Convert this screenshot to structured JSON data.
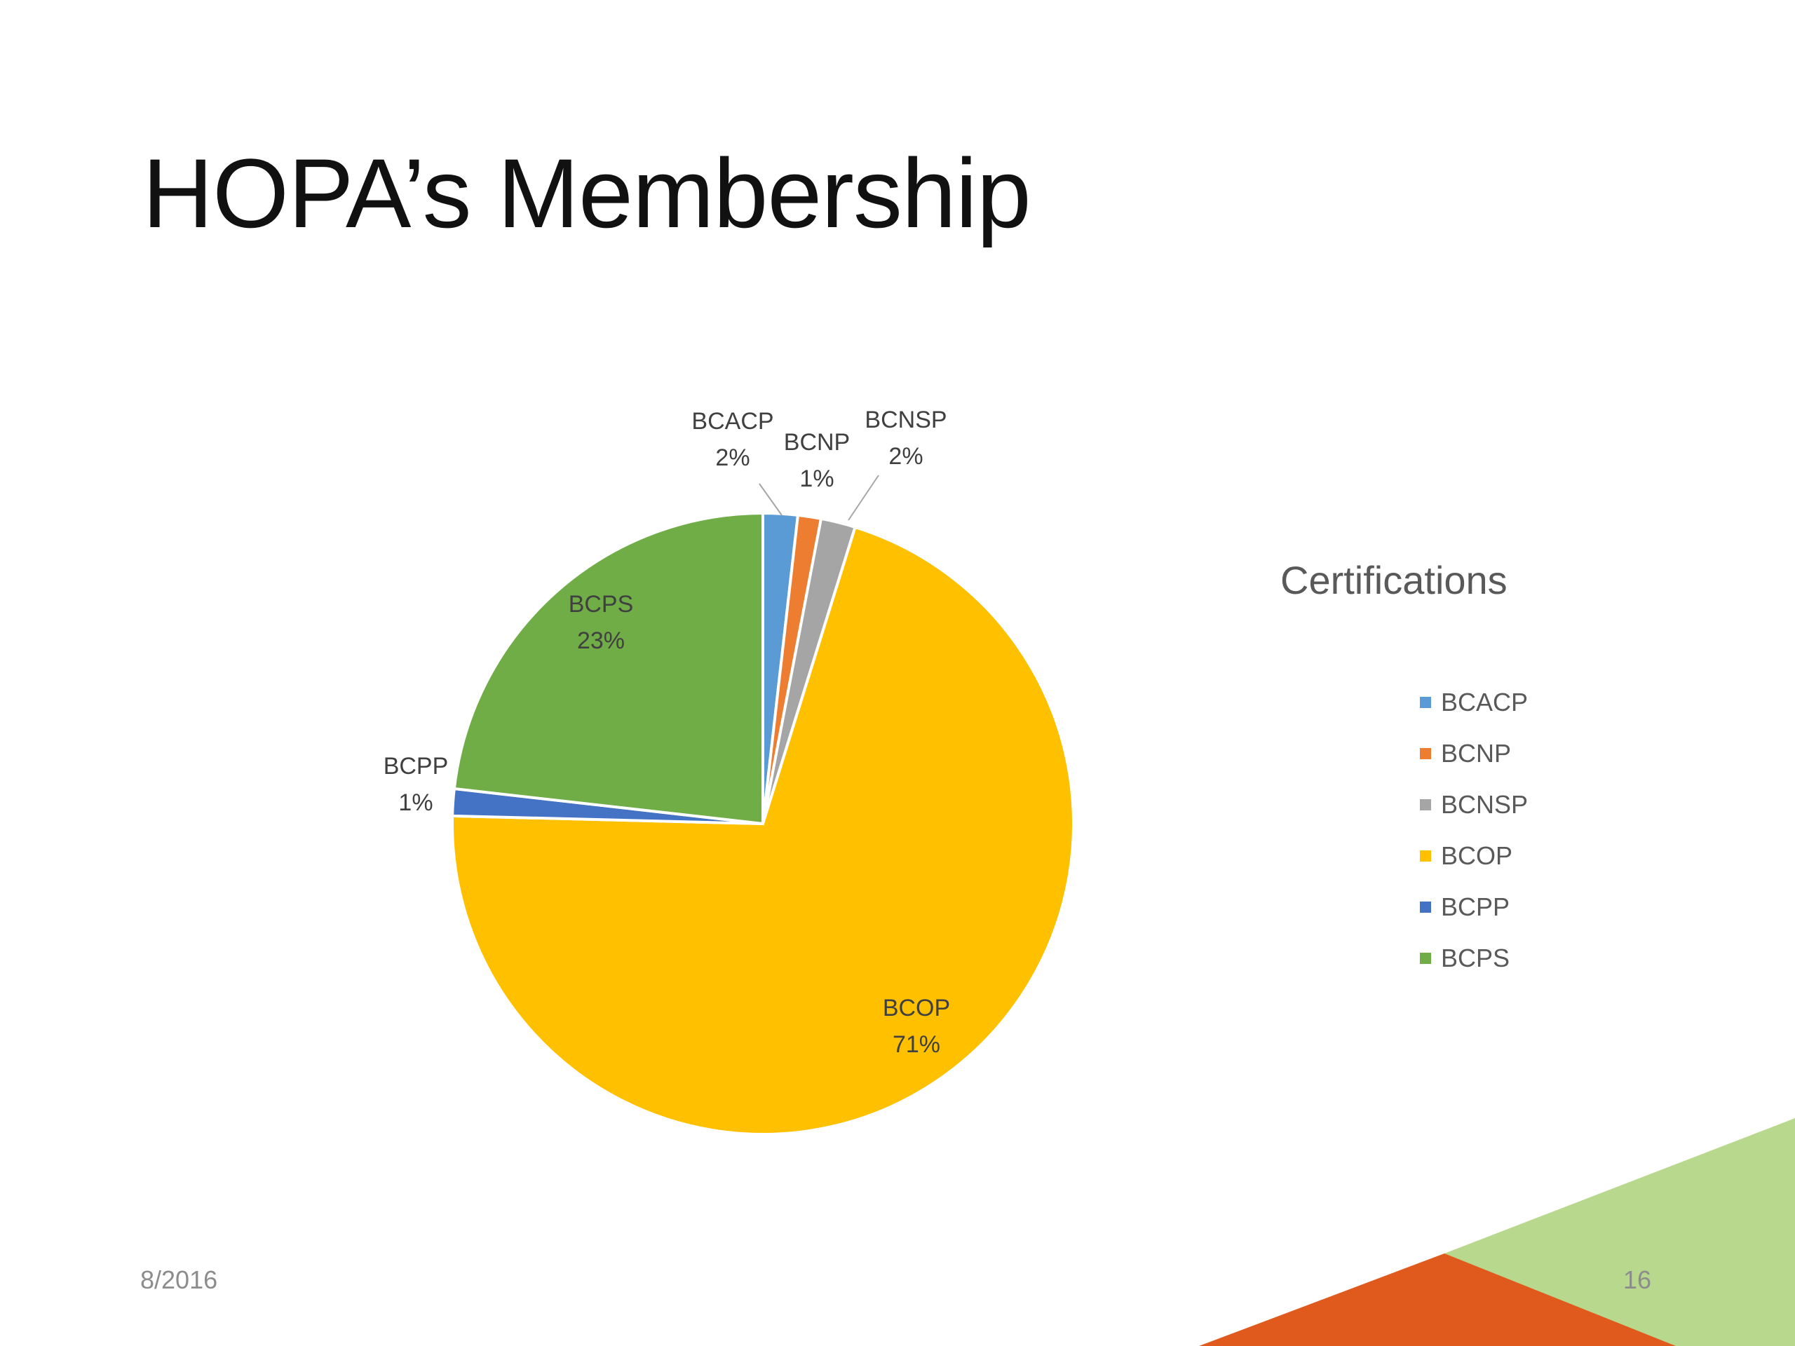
{
  "slide": {
    "title": "HOPA’s Membership",
    "date": "8/2016",
    "page_number": "16"
  },
  "chart_data": {
    "type": "pie",
    "title": "",
    "legend_title": "Certifications",
    "legend_position": "right",
    "categories": [
      "BCACP",
      "BCNP",
      "BCNSP",
      "BCOP",
      "BCPP",
      "BCPS"
    ],
    "values": [
      1.8,
      1.2,
      1.8,
      70.6,
      1.4,
      23.2
    ],
    "label_percents": [
      "2%",
      "1%",
      "2%",
      "71%",
      "1%",
      "23%"
    ],
    "colors": [
      "#5B9BD5",
      "#ED7D31",
      "#A5A5A5",
      "#FFC000",
      "#4472C4",
      "#70AD47"
    ],
    "start_angle_deg": 0,
    "direction": "clockwise"
  },
  "decor": {
    "corner_green": "#B8D98D",
    "corner_orange": "#E05A1E"
  }
}
